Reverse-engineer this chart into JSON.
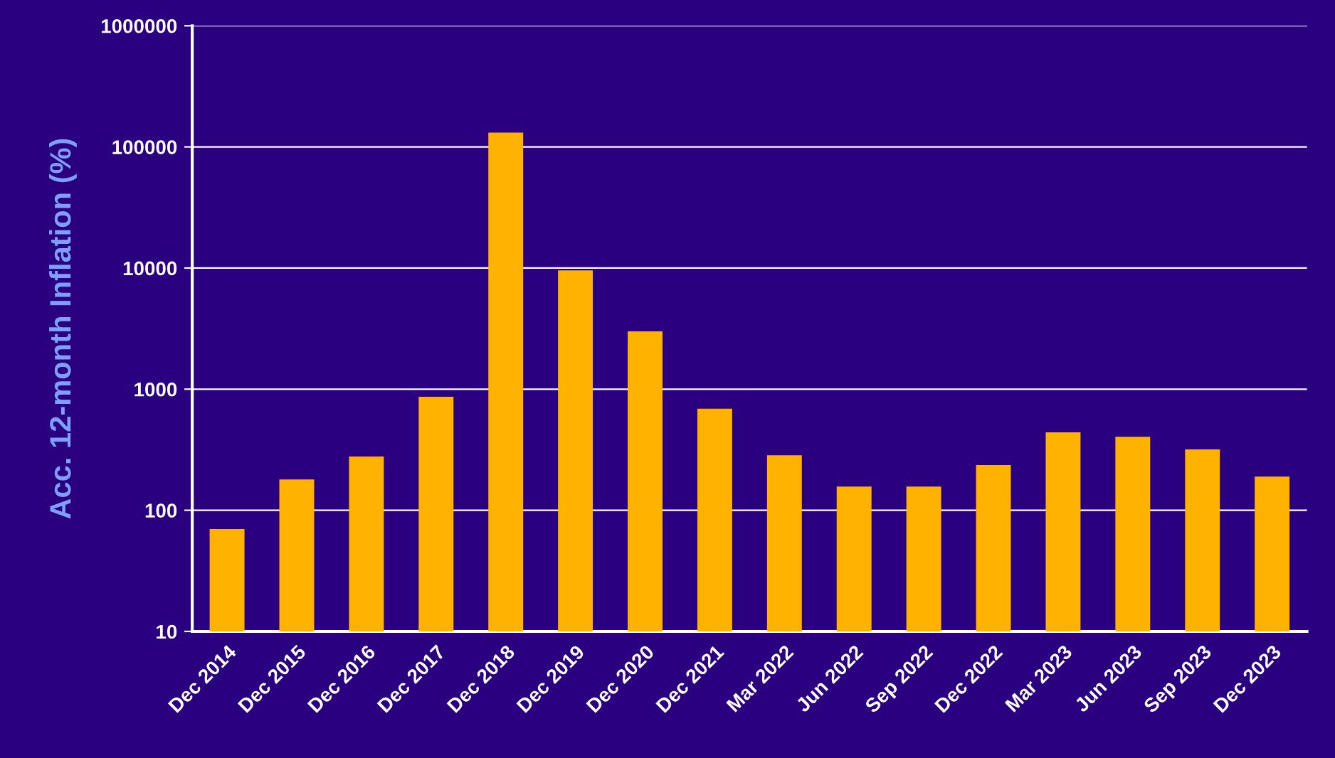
{
  "chart_data": {
    "type": "bar",
    "ylabel": "Acc. 12-month Inflation (%)",
    "categories": [
      "Dec 2014",
      "Dec 2015",
      "Dec 2016",
      "Dec 2017",
      "Dec 2018",
      "Dec 2019",
      "Dec 2020",
      "Dec 2021",
      "Mar 2022",
      "Jun 2022",
      "Sep 2022",
      "Dec 2022",
      "Mar 2023",
      "Jun 2023",
      "Sep 2023",
      "Dec 2023"
    ],
    "values": [
      70,
      180,
      278,
      865,
      131000,
      9550,
      3000,
      690,
      285,
      157,
      157,
      236,
      440,
      405,
      318,
      190
    ],
    "color": "#ffb300",
    "log": true,
    "ylim": [
      10,
      1000000
    ],
    "yticks": [
      10,
      100,
      1000,
      10000,
      100000,
      1000000
    ],
    "grid": "y"
  }
}
